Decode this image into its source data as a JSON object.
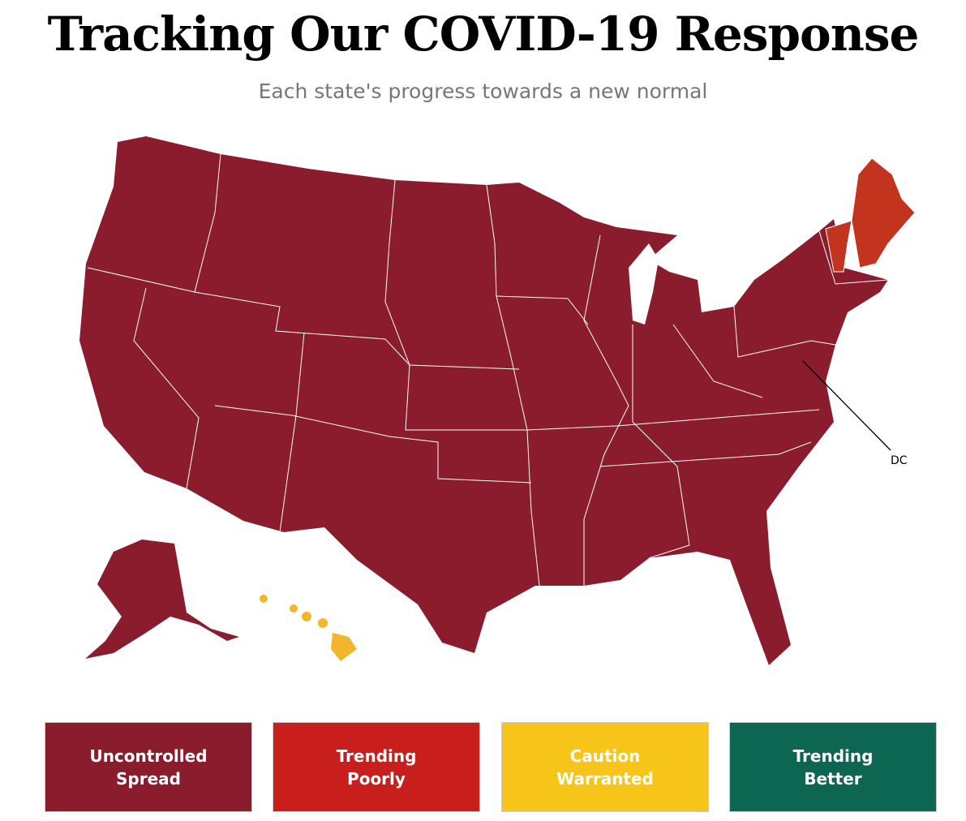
{
  "header": {
    "title": "Tracking Our COVID-19 Response",
    "subtitle": "Each state's progress towards a new normal"
  },
  "map": {
    "labels": [
      "DC"
    ]
  },
  "legend": [
    {
      "lines": [
        "Uncontrolled",
        "Spread"
      ],
      "color": "#8a1c2e"
    },
    {
      "lines": [
        "Trending",
        "Poorly"
      ],
      "color": "#c81f1c"
    },
    {
      "lines": [
        "Caution",
        "Warranted"
      ],
      "color": "#f7c51a"
    },
    {
      "lines": [
        "Trending",
        "Better"
      ],
      "color": "#0c6651"
    }
  ]
}
